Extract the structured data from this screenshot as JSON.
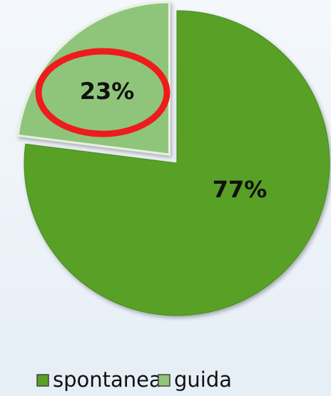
{
  "chart_data": {
    "type": "pie",
    "categories": [
      "spontanea",
      "guida"
    ],
    "values": [
      77,
      23
    ],
    "value_labels": [
      "77%",
      "23%"
    ],
    "colors": [
      "#58a028",
      "#8fc57a"
    ]
  }
}
